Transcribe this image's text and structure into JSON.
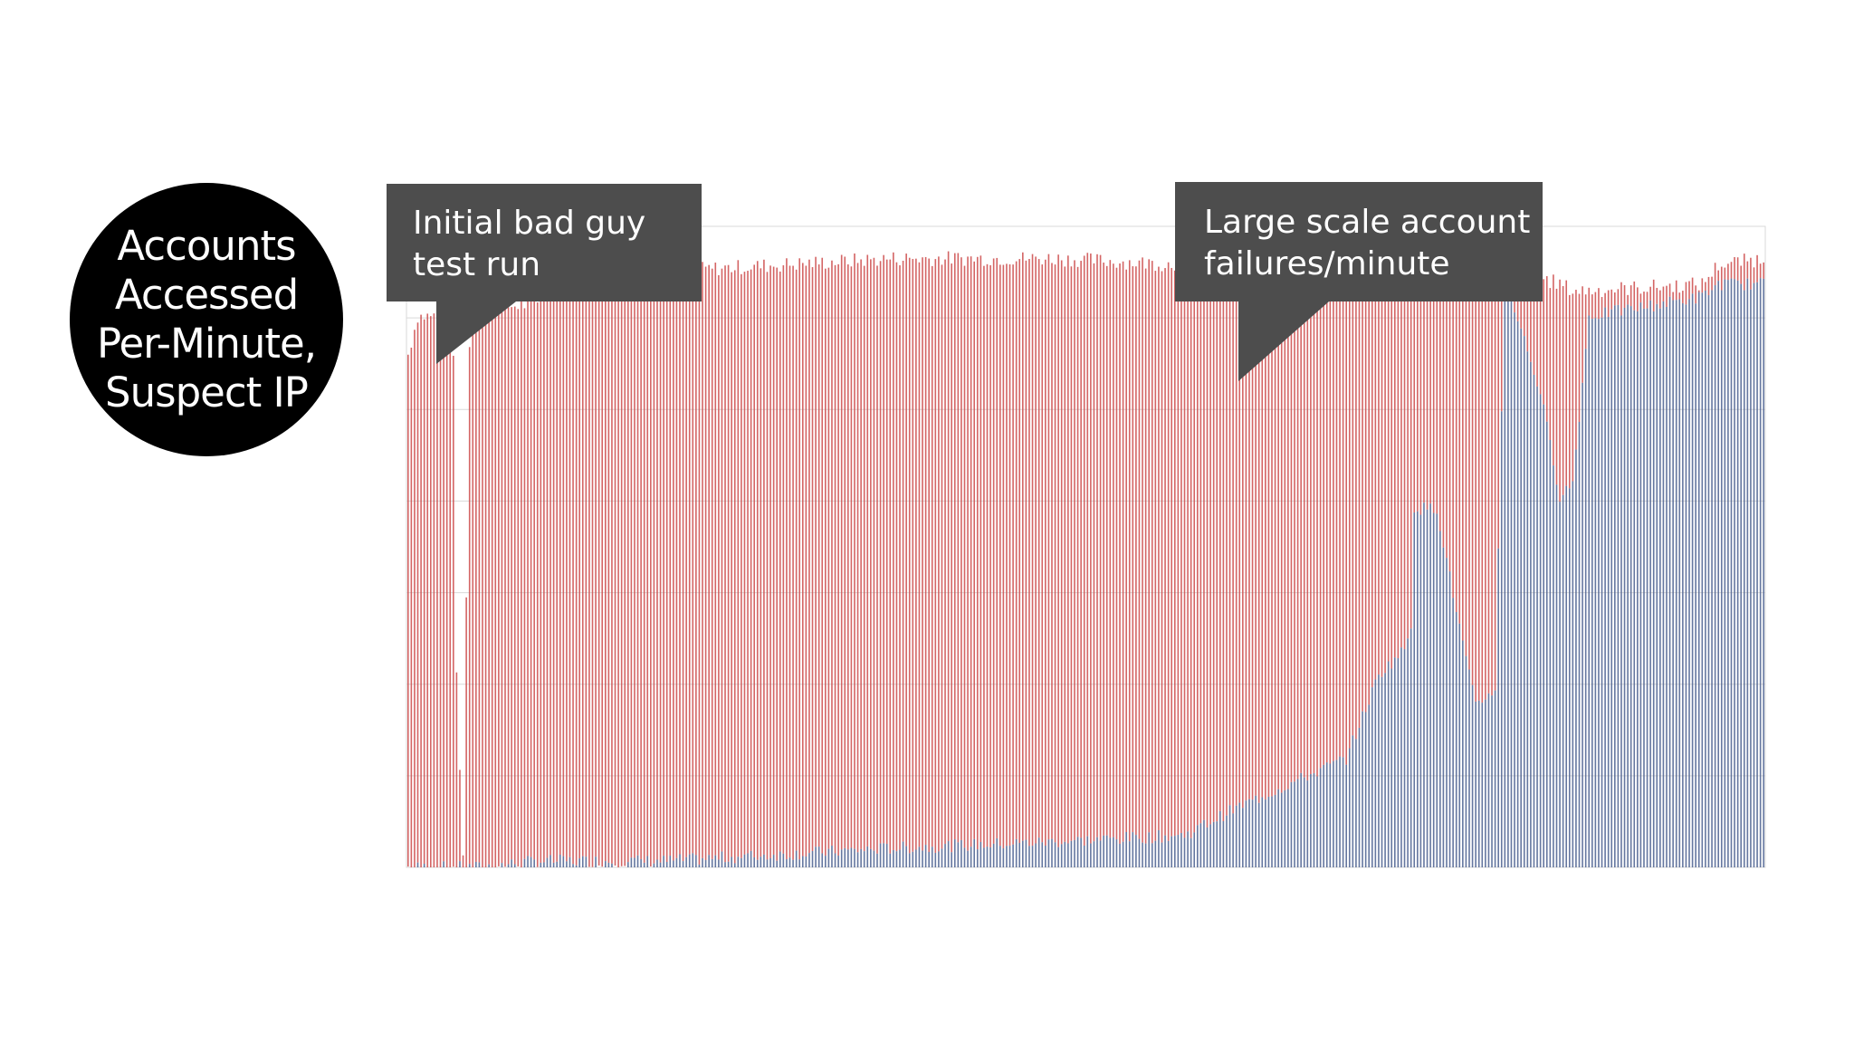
{
  "title": "Accounts\nAccessed\nPer-Minute,\nSuspect IP",
  "annotations": [
    {
      "line1": "Initial bad guy",
      "line2": "test run"
    },
    {
      "line1": "Large scale account",
      "line2": "failures/minute"
    }
  ],
  "colors": {
    "background": "#ffffff",
    "circle": "#000000",
    "callout": "#4d4d4d",
    "series_red": "#cc4a4a",
    "series_blue": "#4a5f8f",
    "grid": "#d9d9d9"
  },
  "chart_data": {
    "type": "bar",
    "stacked": true,
    "title": "",
    "xlabel": "",
    "ylabel": "",
    "x_ticks": "none",
    "y_ticks": "none",
    "grid": true,
    "ylim": [
      0,
      100
    ],
    "bar_count": 420,
    "profile_points": [
      [
        0,
        0,
        80
      ],
      [
        3,
        0,
        86
      ],
      [
        9,
        0,
        86
      ],
      [
        10,
        0,
        82
      ],
      [
        14,
        0,
        80
      ],
      [
        15,
        0,
        30
      ],
      [
        17,
        0,
        2
      ],
      [
        19,
        0,
        82
      ],
      [
        22,
        0,
        87
      ],
      [
        40,
        1,
        88
      ],
      [
        42,
        1,
        94
      ],
      [
        80,
        1,
        93
      ],
      [
        150,
        3,
        95
      ],
      [
        200,
        4,
        95
      ],
      [
        240,
        5,
        94
      ],
      [
        255,
        9,
        93
      ],
      [
        290,
        17,
        94
      ],
      [
        300,
        30,
        95
      ],
      [
        308,
        34,
        93
      ],
      [
        310,
        38,
        93
      ],
      [
        311,
        56,
        93
      ],
      [
        318,
        56,
        91
      ],
      [
        324,
        40,
        93
      ],
      [
        330,
        25,
        94
      ],
      [
        336,
        28,
        97
      ],
      [
        339,
        92,
        98
      ],
      [
        344,
        84,
        94
      ],
      [
        350,
        74,
        92
      ],
      [
        356,
        58,
        91
      ],
      [
        360,
        60,
        90
      ],
      [
        365,
        86,
        90
      ],
      [
        400,
        89,
        91
      ],
      [
        405,
        91,
        94
      ],
      [
        419,
        91,
        95
      ]
    ]
  }
}
